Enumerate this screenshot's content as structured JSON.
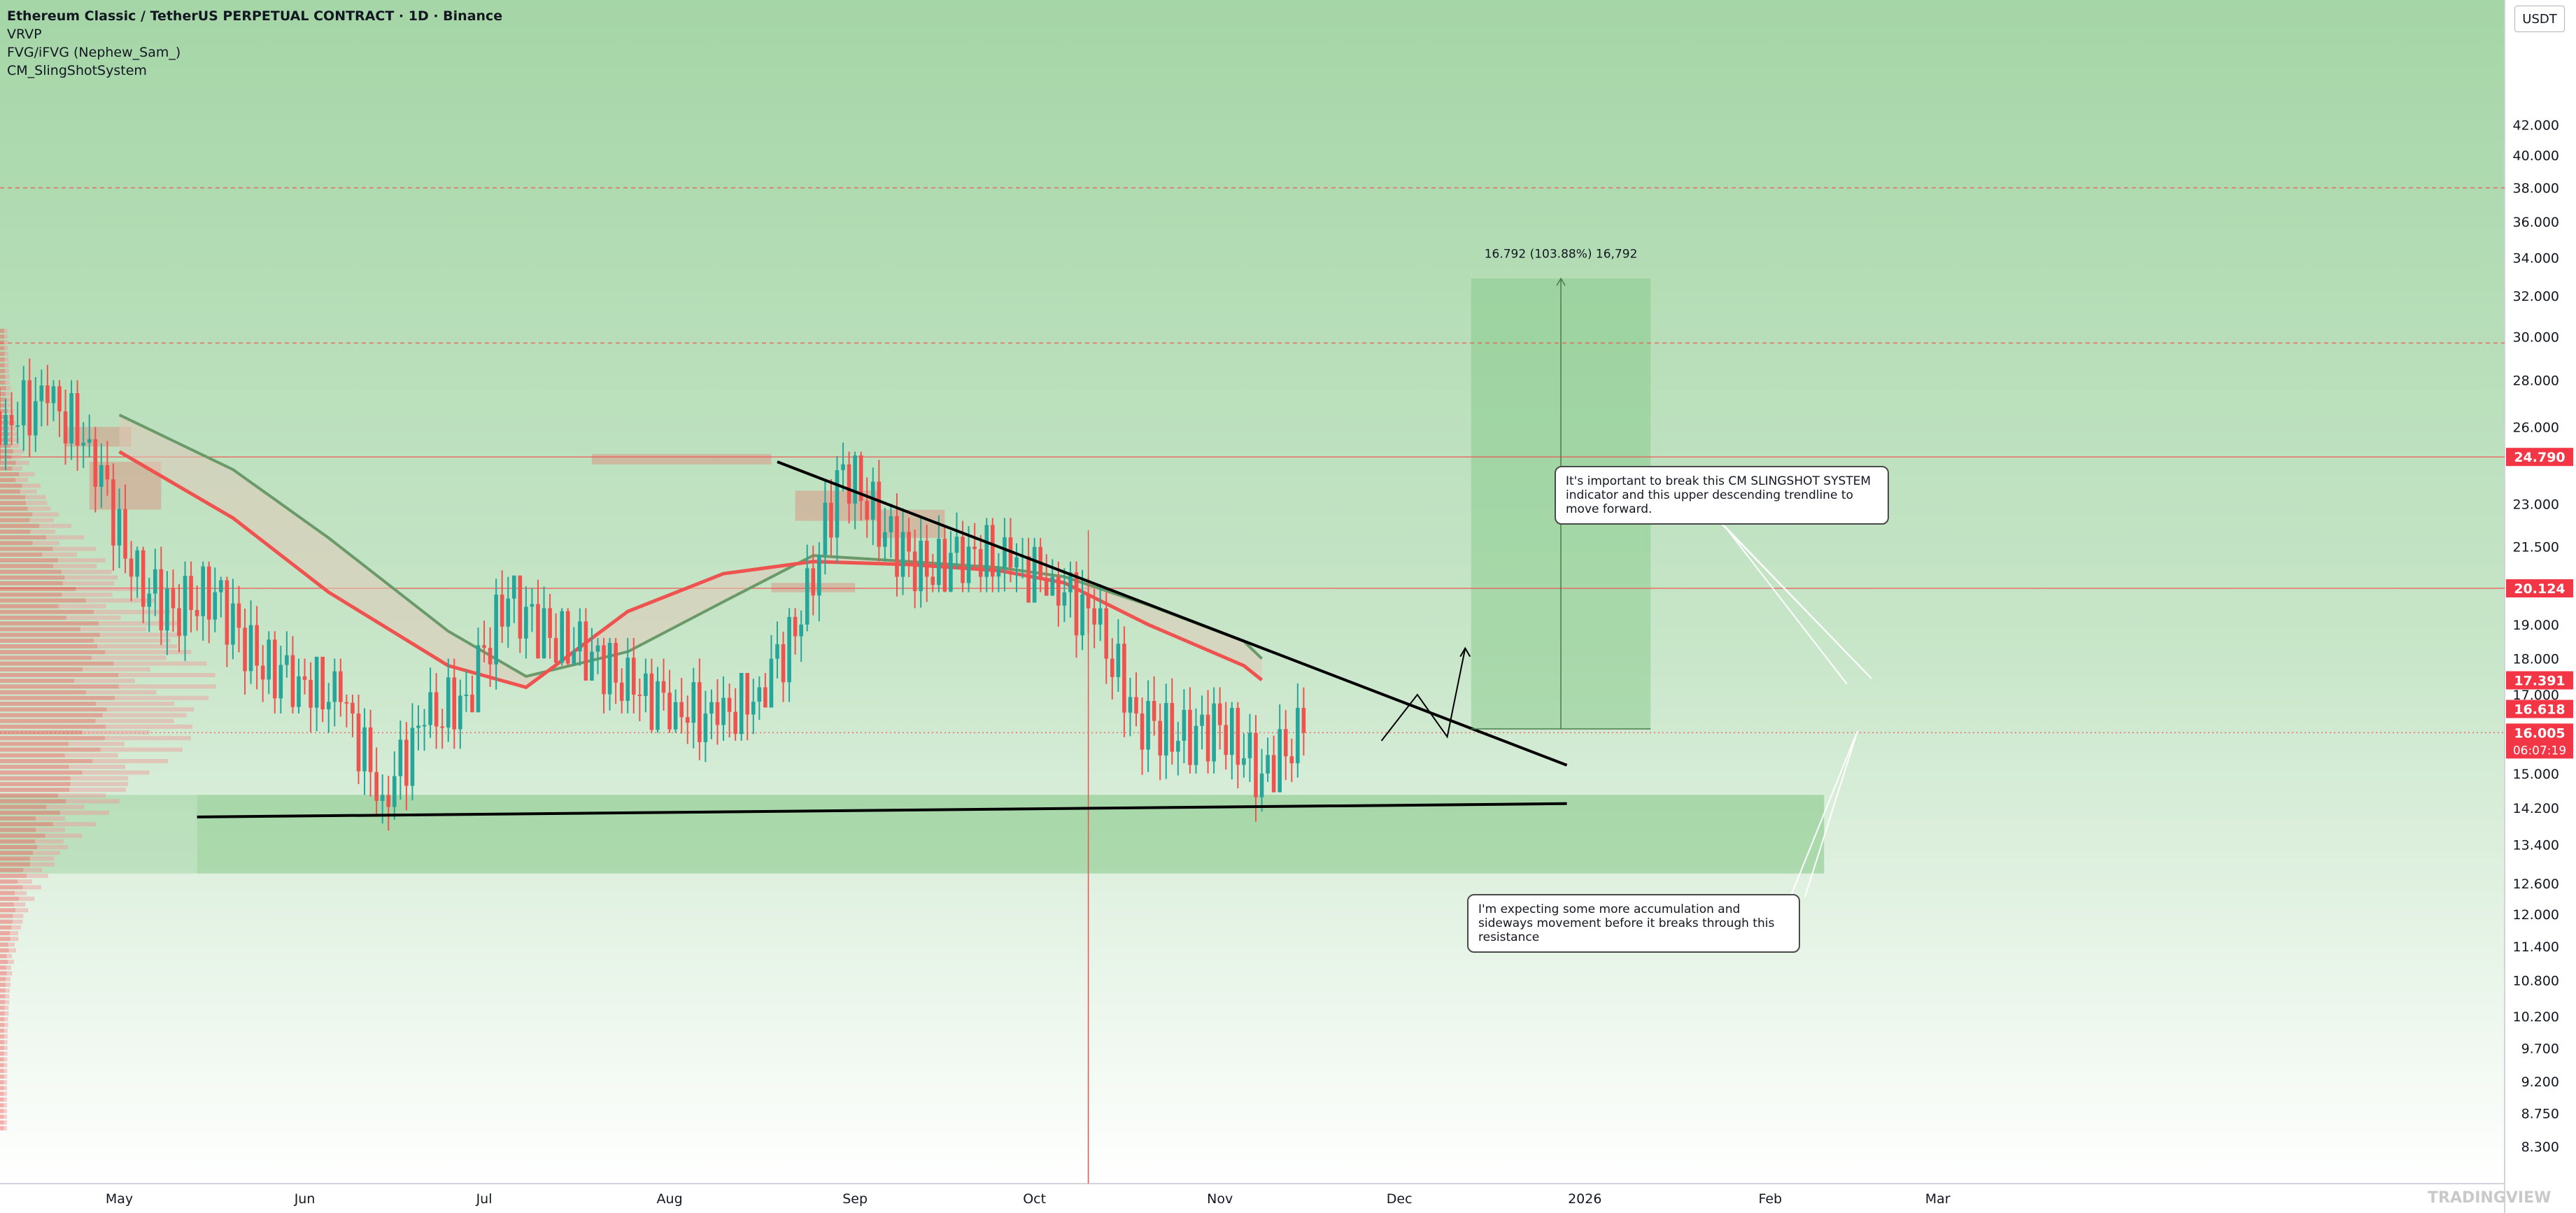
{
  "header": {
    "symbol_title": "Ethereum Classic / TetherUS PERPETUAL CONTRACT · 1D · Binance",
    "indicators": [
      "VRVP",
      "FVG/iFVG (Nephew_Sam_)",
      "CM_SlingShotSystem"
    ]
  },
  "currency_button": "USDT",
  "watermark_text": "TRADINGVIEW",
  "annotations": {
    "slingshot_note": "It's important to break this CM SLINGSHOT SYSTEM indicator and this upper descending trendline to move forward.",
    "accumulation_note": "I'm expecting some more accumulation and sideways movement before it breaks through this resistance",
    "measure_label": "16.792 (103.88%) 16,792"
  },
  "colors": {
    "background": "#a8d8a8",
    "up_candle": "#26a69a",
    "down_candle": "#ef5350",
    "ema_fast": "#ef5350",
    "ema_slow": "#6a9a6a",
    "trendline": "#000000",
    "price_tag_red": "#f23645"
  },
  "chart_data": {
    "type": "candlestick",
    "timeframe": "1D",
    "x_tick_labels": [
      "May",
      "Jun",
      "Jul",
      "Aug",
      "Sep",
      "Oct",
      "Nov",
      "Dec",
      "2026",
      "Feb",
      "Mar"
    ],
    "y_tick_labels": [
      "42.000",
      "40.000",
      "38.000",
      "36.000",
      "34.000",
      "32.000",
      "30.000",
      "28.000",
      "26.000",
      "24.790",
      "23.000",
      "21.500",
      "20.124",
      "19.000",
      "18.000",
      "17.391",
      "17.000",
      "16.618",
      "16.005",
      "15.000",
      "14.200",
      "13.400",
      "12.600",
      "12.000",
      "11.400",
      "10.800",
      "10.200",
      "9.700",
      "9.200",
      "8.750",
      "8.300"
    ],
    "y_scale": "log",
    "ylim": [
      8.0,
      48.0
    ],
    "price_tags": [
      {
        "label": "24.790",
        "value": 24.79
      },
      {
        "label": "20.124",
        "value": 20.124
      },
      {
        "label": "17.391",
        "value": 17.391
      },
      {
        "label": "16.618",
        "value": 16.618
      },
      {
        "label": "16.005",
        "value": 16.005,
        "countdown": "06:07:19"
      }
    ],
    "horizontal_levels": [
      {
        "value": 38.0,
        "style": "dashed"
      },
      {
        "value": 29.7,
        "style": "dashed"
      },
      {
        "value": 24.79,
        "style": "solid"
      },
      {
        "value": 20.124,
        "style": "solid"
      },
      {
        "value": 16.005,
        "style": "dotted"
      }
    ],
    "demand_zone": {
      "low": 12.8,
      "high": 14.5
    },
    "trendlines": [
      {
        "name": "support",
        "from": {
          "date": "2025-05-14",
          "price": 14.0
        },
        "to": {
          "date": "2025-12-29",
          "price": 14.3
        }
      },
      {
        "name": "descending resistance",
        "from": {
          "date": "2025-08-19",
          "price": 24.6
        },
        "to": {
          "date": "2025-12-29",
          "price": 15.2
        }
      }
    ],
    "projection_path": [
      {
        "date": "2025-11-28",
        "price": 15.8
      },
      {
        "date": "2025-12-04",
        "price": 17.0
      },
      {
        "date": "2025-12-09",
        "price": 15.9
      },
      {
        "date": "2025-12-12",
        "price": 18.3
      }
    ],
    "measure": {
      "from_price": 16.1,
      "to_price": 32.9,
      "change": "16.792 (103.88%) 16,792"
    },
    "ema_fast": [
      {
        "date": "2025-05-01",
        "price": 25.0
      },
      {
        "date": "2025-05-20",
        "price": 22.5
      },
      {
        "date": "2025-06-05",
        "price": 20.0
      },
      {
        "date": "2025-06-25",
        "price": 17.8
      },
      {
        "date": "2025-07-08",
        "price": 17.2
      },
      {
        "date": "2025-07-25",
        "price": 19.4
      },
      {
        "date": "2025-08-10",
        "price": 20.6
      },
      {
        "date": "2025-08-25",
        "price": 21.0
      },
      {
        "date": "2025-09-10",
        "price": 20.9
      },
      {
        "date": "2025-09-25",
        "price": 20.7
      },
      {
        "date": "2025-10-06",
        "price": 20.3
      },
      {
        "date": "2025-10-20",
        "price": 19.0
      },
      {
        "date": "2025-11-05",
        "price": 17.8
      },
      {
        "date": "2025-11-08",
        "price": 17.4
      }
    ],
    "ema_slow": [
      {
        "date": "2025-05-01",
        "price": 26.5
      },
      {
        "date": "2025-05-20",
        "price": 24.3
      },
      {
        "date": "2025-06-05",
        "price": 21.8
      },
      {
        "date": "2025-06-25",
        "price": 18.8
      },
      {
        "date": "2025-07-08",
        "price": 17.5
      },
      {
        "date": "2025-07-25",
        "price": 18.2
      },
      {
        "date": "2025-08-10",
        "price": 19.7
      },
      {
        "date": "2025-08-25",
        "price": 21.2
      },
      {
        "date": "2025-09-10",
        "price": 21.0
      },
      {
        "date": "2025-09-25",
        "price": 20.8
      },
      {
        "date": "2025-10-06",
        "price": 20.5
      },
      {
        "date": "2025-10-20",
        "price": 19.6
      },
      {
        "date": "2025-11-05",
        "price": 18.5
      },
      {
        "date": "2025-11-08",
        "price": 18.0
      }
    ],
    "candles_weekly_approx": [
      {
        "date": "2025-04-06",
        "open": 26.0,
        "high": 28.3,
        "low": 23.0,
        "close": 26.5
      },
      {
        "date": "2025-04-13",
        "open": 26.5,
        "high": 29.5,
        "low": 24.5,
        "close": 27.0
      },
      {
        "date": "2025-04-20",
        "open": 27.0,
        "high": 28.0,
        "low": 24.0,
        "close": 25.5
      },
      {
        "date": "2025-04-27",
        "open": 25.5,
        "high": 26.0,
        "low": 19.0,
        "close": 20.5
      },
      {
        "date": "2025-05-04",
        "open": 20.5,
        "high": 21.5,
        "low": 18.0,
        "close": 19.5
      },
      {
        "date": "2025-05-11",
        "open": 19.5,
        "high": 21.0,
        "low": 17.5,
        "close": 20.0
      },
      {
        "date": "2025-05-18",
        "open": 20.0,
        "high": 20.5,
        "low": 17.0,
        "close": 17.8
      },
      {
        "date": "2025-05-25",
        "open": 17.8,
        "high": 18.8,
        "low": 16.5,
        "close": 17.5
      },
      {
        "date": "2025-06-01",
        "open": 17.5,
        "high": 18.0,
        "low": 16.0,
        "close": 16.8
      },
      {
        "date": "2025-06-08",
        "open": 16.8,
        "high": 17.0,
        "low": 13.0,
        "close": 14.5
      },
      {
        "date": "2025-06-15",
        "open": 14.5,
        "high": 16.8,
        "low": 13.6,
        "close": 16.2
      },
      {
        "date": "2025-06-22",
        "open": 16.2,
        "high": 18.0,
        "low": 15.6,
        "close": 17.0
      },
      {
        "date": "2025-06-29",
        "open": 17.0,
        "high": 21.0,
        "low": 16.6,
        "close": 19.8
      },
      {
        "date": "2025-07-06",
        "open": 19.8,
        "high": 20.5,
        "low": 18.0,
        "close": 18.6
      },
      {
        "date": "2025-07-13",
        "open": 18.6,
        "high": 19.5,
        "low": 17.8,
        "close": 18.2
      },
      {
        "date": "2025-07-20",
        "open": 18.2,
        "high": 18.6,
        "low": 16.5,
        "close": 17.0
      },
      {
        "date": "2025-07-27",
        "open": 17.0,
        "high": 18.0,
        "low": 16.0,
        "close": 16.8
      },
      {
        "date": "2025-08-03",
        "open": 16.8,
        "high": 18.2,
        "low": 15.2,
        "close": 16.2
      },
      {
        "date": "2025-08-10",
        "open": 16.2,
        "high": 17.5,
        "low": 15.8,
        "close": 17.2
      },
      {
        "date": "2025-08-17",
        "open": 17.2,
        "high": 19.5,
        "low": 16.8,
        "close": 19.0
      },
      {
        "date": "2025-08-24",
        "open": 19.0,
        "high": 26.0,
        "low": 18.8,
        "close": 24.5
      },
      {
        "date": "2025-08-31",
        "open": 24.5,
        "high": 25.0,
        "low": 21.0,
        "close": 22.0
      },
      {
        "date": "2025-09-07",
        "open": 22.0,
        "high": 24.5,
        "low": 19.5,
        "close": 20.5
      },
      {
        "date": "2025-09-14",
        "open": 20.5,
        "high": 25.5,
        "low": 20.0,
        "close": 21.5
      },
      {
        "date": "2025-09-21",
        "open": 21.5,
        "high": 22.5,
        "low": 20.0,
        "close": 20.8
      },
      {
        "date": "2025-09-28",
        "open": 20.8,
        "high": 21.8,
        "low": 20.0,
        "close": 20.5
      },
      {
        "date": "2025-10-05",
        "open": 20.5,
        "high": 21.0,
        "low": 18.0,
        "close": 19.0
      },
      {
        "date": "2025-10-12",
        "open": 19.0,
        "high": 21.0,
        "low": 14.0,
        "close": 16.5
      },
      {
        "date": "2025-10-19",
        "open": 16.5,
        "high": 17.8,
        "low": 14.8,
        "close": 15.8
      },
      {
        "date": "2025-10-26",
        "open": 15.8,
        "high": 17.2,
        "low": 15.0,
        "close": 16.2
      },
      {
        "date": "2025-11-02",
        "open": 16.2,
        "high": 16.8,
        "low": 13.6,
        "close": 15.0
      },
      {
        "date": "2025-11-09",
        "open": 15.0,
        "high": 18.8,
        "low": 14.8,
        "close": 16.0
      }
    ]
  }
}
